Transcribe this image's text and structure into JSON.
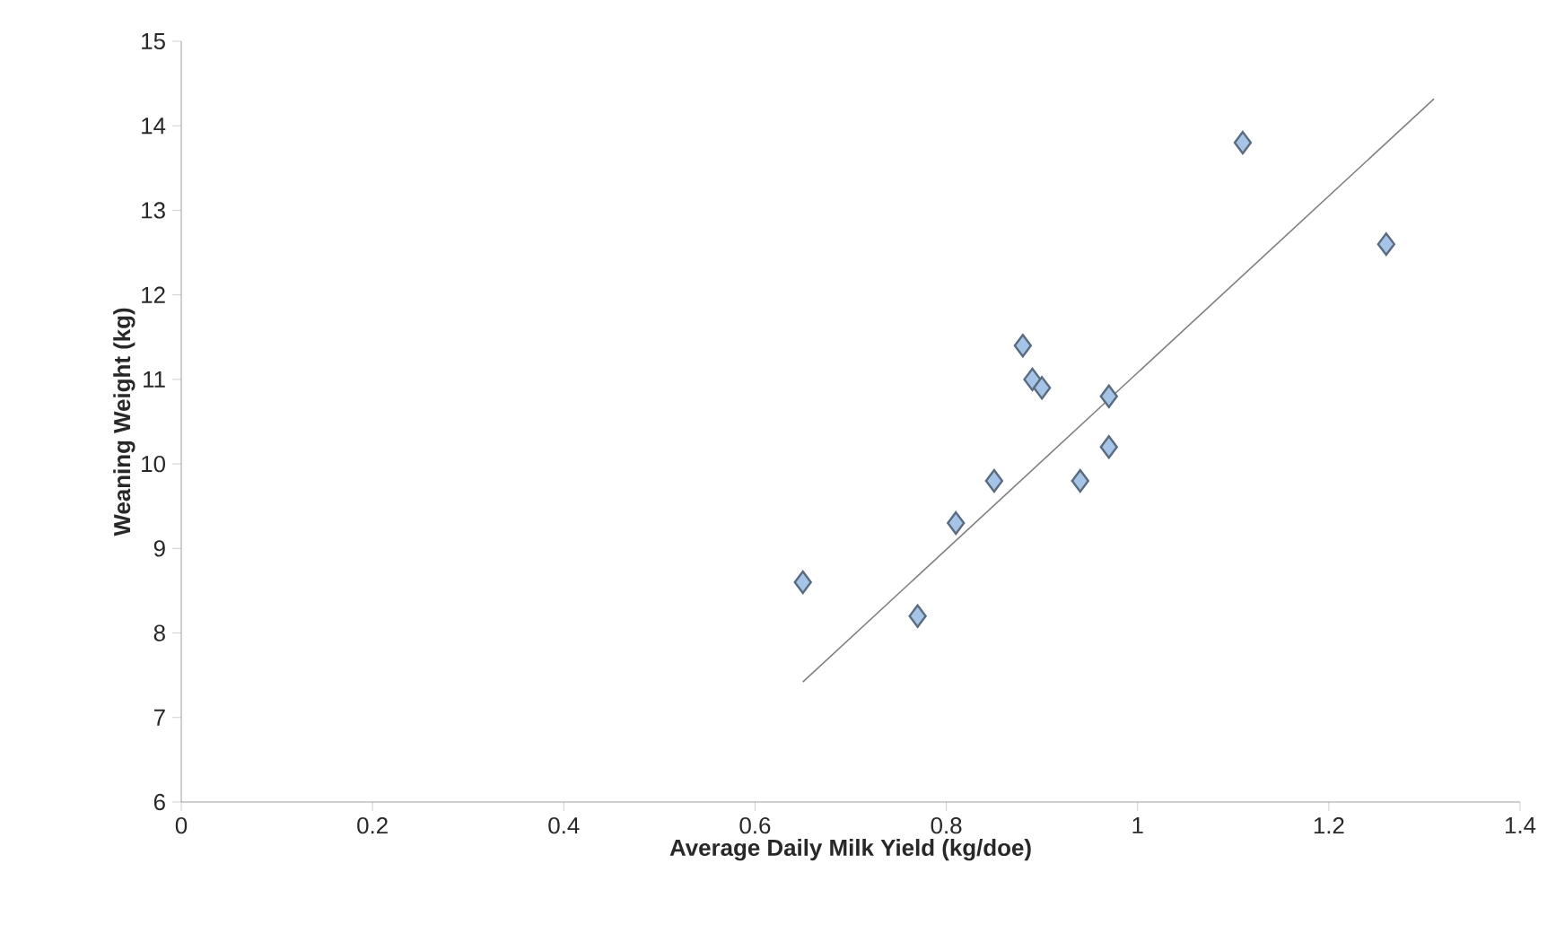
{
  "chart_data": {
    "type": "scatter",
    "xlabel": "Average Daily Milk Yield (kg/doe)",
    "ylabel": "Weaning Weight (kg)",
    "xlim": [
      0,
      1.4
    ],
    "ylim": [
      6,
      15
    ],
    "xticks": [
      0,
      0.2,
      0.4,
      0.6,
      0.8,
      1,
      1.2,
      1.4
    ],
    "yticks": [
      6,
      7,
      8,
      9,
      10,
      11,
      12,
      13,
      14,
      15
    ],
    "series": [
      {
        "color": "#a6c4e8",
        "marker": "diamond",
        "x": [
          0.65,
          0.77,
          0.81,
          0.85,
          0.88,
          0.89,
          0.9,
          0.94,
          0.97,
          0.97,
          1.11,
          1.26
        ],
        "values": [
          8.6,
          8.2,
          9.3,
          9.8,
          11.4,
          11.0,
          10.9,
          9.8,
          10.2,
          10.8,
          13.8,
          12.6
        ]
      },
      {
        "type": "line",
        "color": "#808080",
        "marker": "none",
        "line_style": "solid",
        "x": [
          0.65,
          1.31
        ],
        "values": [
          7.42,
          14.32
        ]
      }
    ]
  }
}
